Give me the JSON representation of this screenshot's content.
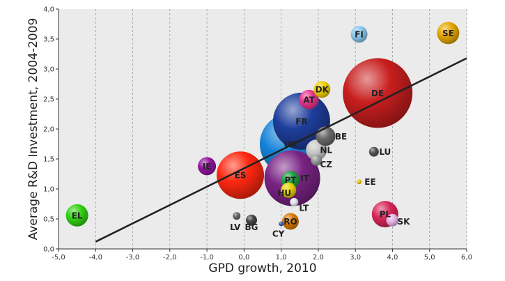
{
  "chart_data": {
    "type": "scatter",
    "variant": "bubble",
    "title": "",
    "xlabel": "GPD growth, 2010",
    "ylabel": "Average R&D Investment, 2004-2009",
    "xlim": [
      -5.0,
      6.0
    ],
    "ylim": [
      0.0,
      4.0
    ],
    "xticks": [
      "-5,0",
      "-4,0",
      "-3,0",
      "-2,0",
      "-1,0",
      "0,0",
      "1,0",
      "2,0",
      "3,0",
      "4,0",
      "5,0",
      "6,0"
    ],
    "yticks": [
      "0,0",
      "0,5",
      "1,0",
      "1,5",
      "2,0",
      "2,5",
      "3,0",
      "3,5",
      "4,0"
    ],
    "grid": "vertical dashed",
    "trendline": {
      "x": [
        -4.0,
        6.0
      ],
      "y": [
        0.12,
        3.18
      ],
      "color": "#222222"
    },
    "points": [
      {
        "label": "DE",
        "x": 3.6,
        "y": 2.6,
        "size": 10.0,
        "color": "#c81e1e"
      },
      {
        "label": "SE",
        "x": 5.5,
        "y": 3.6,
        "size": 3.2,
        "color": "#e6a800"
      },
      {
        "label": "FI",
        "x": 3.1,
        "y": 3.58,
        "size": 2.4,
        "color": "#8ac8ee"
      },
      {
        "label": "DK",
        "x": 2.1,
        "y": 2.66,
        "size": 2.4,
        "color": "#f0d000"
      },
      {
        "label": "AT",
        "x": 1.75,
        "y": 2.49,
        "size": 2.8,
        "color": "#e8348c"
      },
      {
        "label": "FR",
        "x": 1.55,
        "y": 2.13,
        "size": 8.2,
        "color": "#1e3e9c"
      },
      {
        "label": "UK",
        "x": 1.25,
        "y": 1.75,
        "size": 8.8,
        "color": "#1682d8"
      },
      {
        "label": "BE",
        "x": 2.2,
        "y": 1.88,
        "size": 2.8,
        "color": "#6a6a6a"
      },
      {
        "label": "NL",
        "x": 1.95,
        "y": 1.65,
        "size": 3.0,
        "color": "#c8c8c8"
      },
      {
        "label": "CZ",
        "x": 1.95,
        "y": 1.48,
        "size": 1.6,
        "color": "#9a9a9a"
      },
      {
        "label": "LU",
        "x": 3.5,
        "y": 1.62,
        "size": 1.4,
        "color": "#555555"
      },
      {
        "label": "IE",
        "x": -1.0,
        "y": 1.38,
        "size": 2.6,
        "color": "#9414a0"
      },
      {
        "label": "ES",
        "x": -0.1,
        "y": 1.23,
        "size": 6.8,
        "color": "#ff2810"
      },
      {
        "label": "IT",
        "x": 1.3,
        "y": 1.18,
        "size": 8.0,
        "color": "#7a2484"
      },
      {
        "label": "PT",
        "x": 1.25,
        "y": 1.15,
        "size": 2.6,
        "color": "#1ea040"
      },
      {
        "label": "HU",
        "x": 1.2,
        "y": 0.98,
        "size": 2.2,
        "color": "#e6d200"
      },
      {
        "label": "LT",
        "x": 1.35,
        "y": 0.78,
        "size": 1.2,
        "color": "#e6e6f5"
      },
      {
        "label": "EE",
        "x": 3.1,
        "y": 1.12,
        "size": 0.7,
        "color": "#f0c800"
      },
      {
        "label": "PL",
        "x": 3.8,
        "y": 0.58,
        "size": 3.8,
        "color": "#d8285a"
      },
      {
        "label": "SK",
        "x": 4.0,
        "y": 0.48,
        "size": 1.8,
        "color": "#e6b4e6"
      },
      {
        "label": "LV",
        "x": -0.2,
        "y": 0.55,
        "size": 1.1,
        "color": "#666666"
      },
      {
        "label": "BG",
        "x": 0.2,
        "y": 0.48,
        "size": 1.6,
        "color": "#444444"
      },
      {
        "label": "CY",
        "x": 1.0,
        "y": 0.42,
        "size": 0.7,
        "color": "#3a5cb4"
      },
      {
        "label": "RO",
        "x": 1.25,
        "y": 0.46,
        "size": 2.4,
        "color": "#dc7800"
      },
      {
        "label": "EL",
        "x": -4.5,
        "y": 0.56,
        "size": 3.2,
        "color": "#32d214"
      }
    ]
  }
}
